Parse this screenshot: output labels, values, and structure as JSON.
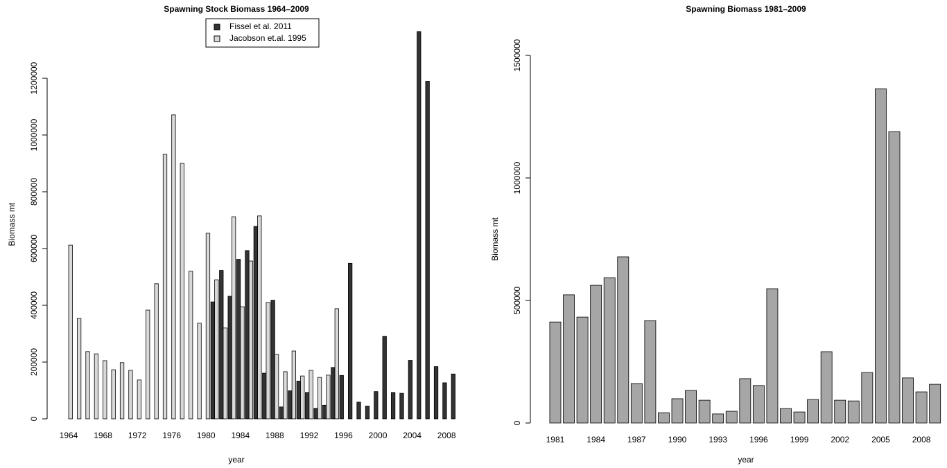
{
  "chart_data": [
    {
      "type": "bar",
      "title": "Spawning Stock Biomass 1964–2009",
      "xlabel": "year",
      "ylabel": "Biomass mt",
      "categories": [
        "1964",
        null,
        null,
        null,
        "1968",
        null,
        null,
        null,
        "1972",
        null,
        null,
        null,
        "1976",
        null,
        null,
        null,
        "1980",
        null,
        null,
        null,
        "1984",
        null,
        null,
        null,
        "1988",
        null,
        null,
        null,
        "1992",
        null,
        null,
        null,
        "1996",
        null,
        null,
        null,
        "2000",
        null,
        null,
        null,
        "2004",
        null,
        null,
        null,
        "2008",
        null
      ],
      "series": [
        {
          "name": "Fissel et al. 2011",
          "color": "#333333",
          "values": [
            null,
            null,
            null,
            null,
            null,
            null,
            null,
            null,
            null,
            null,
            null,
            null,
            null,
            null,
            null,
            null,
            null,
            412000,
            523000,
            432000,
            562000,
            593000,
            678000,
            161000,
            418000,
            42000,
            99000,
            133000,
            93000,
            37000,
            48000,
            181000,
            153000,
            548000,
            59000,
            45000,
            96000,
            291000,
            93000,
            90000,
            206000,
            1364000,
            1189000,
            184000,
            127000,
            158000
          ]
        },
        {
          "name": "Jacobson et.al. 1995",
          "color": "#d9d9d9",
          "values": [
            612000,
            354000,
            237000,
            229000,
            205000,
            173000,
            198000,
            171000,
            137000,
            383000,
            476000,
            932000,
            1071000,
            900000,
            520000,
            337000,
            654000,
            490000,
            320000,
            712000,
            395000,
            556000,
            715000,
            410000,
            227000,
            166000,
            239000,
            151000,
            171000,
            146000,
            154000,
            388000,
            null,
            null,
            null,
            null,
            null,
            null,
            null,
            null,
            null,
            null,
            null,
            null,
            null,
            null
          ]
        }
      ],
      "ylim": [
        0,
        1370000
      ],
      "yticks": [
        0,
        200000,
        400000,
        600000,
        800000,
        1000000,
        1200000
      ],
      "legend": "top"
    },
    {
      "type": "bar",
      "title": "Spawning Biomass 1981–2009",
      "xlabel": "year",
      "ylabel": "Biomass mt",
      "categories": [
        "1981",
        null,
        null,
        "1984",
        null,
        null,
        "1987",
        null,
        null,
        "1990",
        null,
        null,
        "1993",
        null,
        null,
        "1996",
        null,
        null,
        "1999",
        null,
        null,
        "2002",
        null,
        null,
        "2005",
        null,
        null,
        "2008",
        null
      ],
      "values": [
        412000,
        523000,
        432000,
        562000,
        593000,
        678000,
        161000,
        418000,
        42000,
        99000,
        133000,
        93000,
        37000,
        48000,
        181000,
        153000,
        548000,
        59000,
        45000,
        96000,
        291000,
        93000,
        90000,
        206000,
        1364000,
        1189000,
        184000,
        127000,
        158000
      ],
      "color": "#a6a6a6",
      "ylim": [
        0,
        1500000
      ],
      "yticks": [
        0,
        500000,
        1000000,
        1500000
      ]
    }
  ]
}
